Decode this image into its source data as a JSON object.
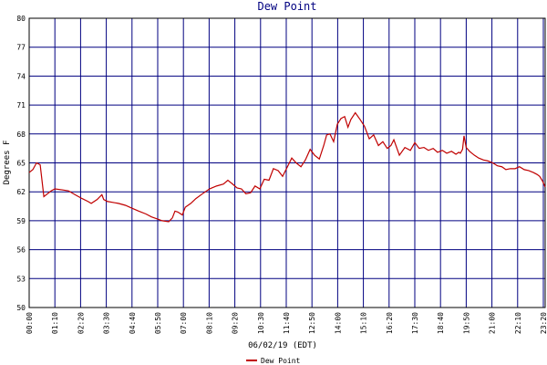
{
  "chart_data": {
    "type": "line",
    "title": "Dew Point",
    "x_label": "06/02/19 (EDT)",
    "y_label": "Degrees F",
    "x": [
      0,
      10,
      20,
      30,
      40,
      50,
      60,
      70,
      90,
      107,
      125,
      144,
      160,
      169,
      185,
      198,
      203,
      213,
      228,
      243,
      262,
      280,
      298,
      318,
      333,
      348,
      362,
      380,
      390,
      397,
      405,
      417,
      425,
      440,
      454,
      472,
      491,
      510,
      529,
      541,
      554,
      566,
      578,
      590,
      603,
      615,
      628,
      640,
      653,
      665,
      678,
      690,
      702,
      715,
      727,
      740,
      752,
      765,
      777,
      790,
      802,
      810,
      819,
      829,
      839,
      849,
      859,
      868,
      876,
      888,
      901,
      913,
      926,
      938,
      951,
      963,
      975,
      985,
      993,
      1008,
      1023,
      1038,
      1050,
      1062,
      1075,
      1087,
      1100,
      1112,
      1125,
      1137,
      1150,
      1162,
      1170,
      1174,
      1180,
      1184,
      1190,
      1199,
      1212,
      1224,
      1237,
      1249,
      1262,
      1275,
      1287,
      1298,
      1310,
      1323,
      1335,
      1348,
      1360,
      1373,
      1383,
      1390,
      1398,
      1405
    ],
    "series": [
      {
        "name": "Dew Point",
        "color": "#c00000",
        "values": [
          64.0,
          64.3,
          65.0,
          64.8,
          61.5,
          61.8,
          62.1,
          62.3,
          62.2,
          62.1,
          61.7,
          61.3,
          61.0,
          60.8,
          61.2,
          61.7,
          61.2,
          61.0,
          60.9,
          60.8,
          60.6,
          60.3,
          60.0,
          59.7,
          59.4,
          59.2,
          59.0,
          58.9,
          59.3,
          60.0,
          59.9,
          59.6,
          60.4,
          60.8,
          61.3,
          61.8,
          62.3,
          62.6,
          62.8,
          63.2,
          62.8,
          62.4,
          62.3,
          61.8,
          61.9,
          62.6,
          62.3,
          63.3,
          63.2,
          64.4,
          64.2,
          63.6,
          64.5,
          65.5,
          65.0,
          64.6,
          65.3,
          66.4,
          65.8,
          65.4,
          66.8,
          67.9,
          68.0,
          67.2,
          69.0,
          69.6,
          69.8,
          68.7,
          69.5,
          70.2,
          69.5,
          68.8,
          67.5,
          67.9,
          66.8,
          67.2,
          66.5,
          66.8,
          67.4,
          65.8,
          66.6,
          66.3,
          67.1,
          66.5,
          66.6,
          66.3,
          66.5,
          66.1,
          66.3,
          66.0,
          66.2,
          65.9,
          66.1,
          66.0,
          66.4,
          67.8,
          66.6,
          66.2,
          65.8,
          65.5,
          65.3,
          65.2,
          65.0,
          64.7,
          64.6,
          64.3,
          64.4,
          64.4,
          64.6,
          64.3,
          64.2,
          64.0,
          63.8,
          63.6,
          63.1,
          62.5
        ]
      }
    ],
    "xlim": [
      0,
      1405
    ],
    "ylim": [
      50,
      80
    ],
    "xticks": [
      {
        "value": 0,
        "label": "00:00"
      },
      {
        "value": 70,
        "label": "01:10"
      },
      {
        "value": 140,
        "label": "02:20"
      },
      {
        "value": 210,
        "label": "03:30"
      },
      {
        "value": 280,
        "label": "04:40"
      },
      {
        "value": 350,
        "label": "05:50"
      },
      {
        "value": 420,
        "label": "07:00"
      },
      {
        "value": 490,
        "label": "08:10"
      },
      {
        "value": 560,
        "label": "09:20"
      },
      {
        "value": 630,
        "label": "10:30"
      },
      {
        "value": 700,
        "label": "11:40"
      },
      {
        "value": 770,
        "label": "12:50"
      },
      {
        "value": 840,
        "label": "14:00"
      },
      {
        "value": 910,
        "label": "15:10"
      },
      {
        "value": 980,
        "label": "16:20"
      },
      {
        "value": 1050,
        "label": "17:30"
      },
      {
        "value": 1120,
        "label": "18:40"
      },
      {
        "value": 1190,
        "label": "19:50"
      },
      {
        "value": 1260,
        "label": "21:00"
      },
      {
        "value": 1330,
        "label": "22:10"
      },
      {
        "value": 1400,
        "label": "23:20"
      }
    ],
    "yticks": [
      50,
      53,
      56,
      59,
      62,
      65,
      68,
      71,
      74,
      77,
      80
    ],
    "grid": true
  }
}
